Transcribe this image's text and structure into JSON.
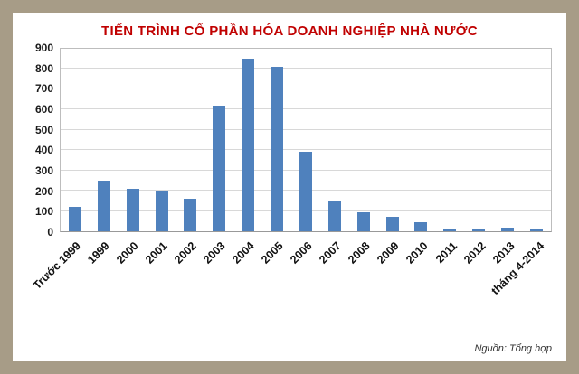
{
  "title": "TIẾN TRÌNH CỔ PHẦN HÓA DOANH NGHIỆP NHÀ NƯỚC",
  "source": "Nguồn: Tổng hợp",
  "colors": {
    "frame": "#a79c87",
    "title": "#c00000",
    "bar": "#4f81bd",
    "grid": "#d8d8d8"
  },
  "chart_data": {
    "type": "bar",
    "title": "TIẾN TRÌNH CỔ PHẦN HÓA DOANH NGHIỆP NHÀ NƯỚC",
    "categories": [
      "Trước 1999",
      "1999",
      "2000",
      "2001",
      "2002",
      "2003",
      "2004",
      "2005",
      "2006",
      "2007",
      "2008",
      "2009",
      "2010",
      "2011",
      "2012",
      "2013",
      "tháng 4-2014"
    ],
    "values": [
      120,
      250,
      210,
      200,
      160,
      620,
      850,
      810,
      390,
      145,
      95,
      70,
      45,
      15,
      10,
      20,
      15
    ],
    "xlabel": "",
    "ylabel": "",
    "ylim": [
      0,
      900
    ],
    "ytick_step": 100,
    "grid": true,
    "legend": "none",
    "source": "Nguồn: Tổng hợp"
  }
}
